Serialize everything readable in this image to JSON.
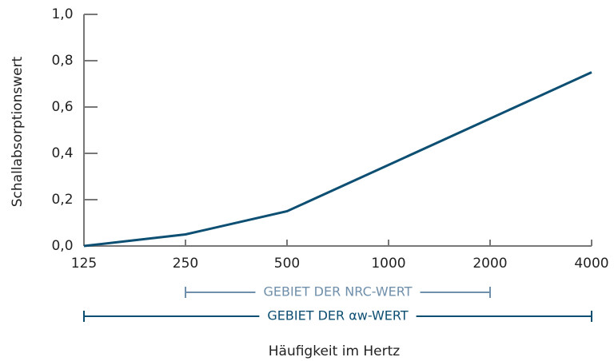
{
  "chart_data": {
    "type": "line",
    "categories": [
      "125",
      "250",
      "500",
      "1000",
      "2000",
      "4000"
    ],
    "series": [
      {
        "name": "Schallabsorptionswert",
        "color": "#0d4f73",
        "values": [
          0,
          0.05,
          0.15,
          0.35,
          0.55,
          0.75
        ]
      }
    ],
    "ylim": [
      0,
      1
    ],
    "yticks": [
      {
        "value": 0,
        "label": "0,0"
      },
      {
        "value": 0.2,
        "label": "0,2"
      },
      {
        "value": 0.4,
        "label": "0,4"
      },
      {
        "value": 0.6,
        "label": "0,6"
      },
      {
        "value": 0.8,
        "label": "0,8"
      },
      {
        "value": 1,
        "label": "1,0"
      }
    ],
    "x_label": "Häufigkeit im Hertz",
    "y_label": "Schallabsorptionswert",
    "annotations": [
      {
        "text": "GEBIET DER NRC-WERT",
        "from": "250",
        "to": "2000",
        "color": "#6f8fab"
      },
      {
        "text": "GEBIET DER αw-WERT",
        "from": "125",
        "to": "4000",
        "color": "#0d4f73"
      }
    ]
  }
}
